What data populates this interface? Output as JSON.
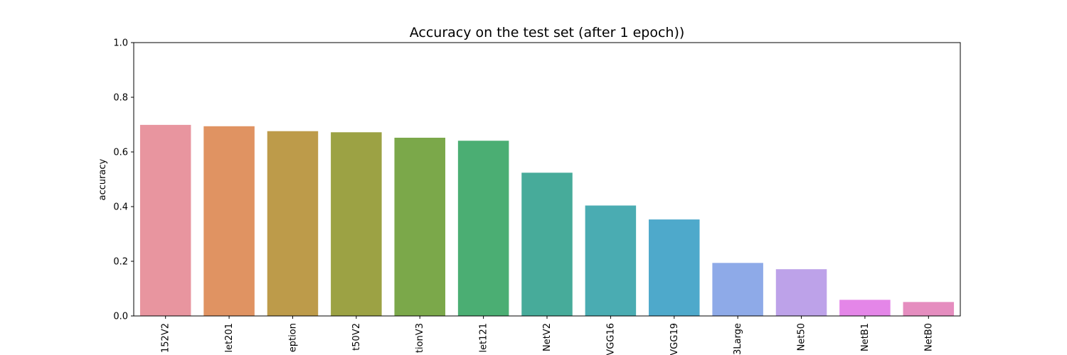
{
  "chart_data": {
    "type": "bar",
    "title": "Accuracy on the test set (after 1 epoch))",
    "xlabel": "",
    "ylabel": "accuracy",
    "ylim": [
      0,
      1.0
    ],
    "yticks": [
      "0.0",
      "0.2",
      "0.4",
      "0.6",
      "0.8",
      "1.0"
    ],
    "grid": false,
    "categories": [
      "152V2",
      "let201",
      "eption",
      "t50V2",
      "tionV3",
      "let121",
      "NetV2",
      "VGG16",
      "VGG19",
      "3Large",
      "Net50",
      "NetB1",
      "NetB0"
    ],
    "values": [
      0.699,
      0.694,
      0.676,
      0.672,
      0.652,
      0.641,
      0.524,
      0.404,
      0.353,
      0.194,
      0.171,
      0.059,
      0.051
    ],
    "colors": [
      "#e8959f",
      "#e09362",
      "#bd9b4a",
      "#9ca244",
      "#7ba84a",
      "#4bae73",
      "#47ab9a",
      "#4aacb2",
      "#4ea9cb",
      "#8eaae8",
      "#bda2e9",
      "#e486e8",
      "#e58dbf"
    ]
  }
}
